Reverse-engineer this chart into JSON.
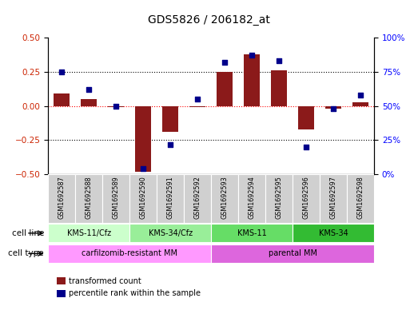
{
  "title": "GDS5826 / 206182_at",
  "samples": [
    "GSM1692587",
    "GSM1692588",
    "GSM1692589",
    "GSM1692590",
    "GSM1692591",
    "GSM1692592",
    "GSM1692593",
    "GSM1692594",
    "GSM1692595",
    "GSM1692596",
    "GSM1692597",
    "GSM1692598"
  ],
  "transformed_count": [
    0.09,
    0.05,
    -0.01,
    -0.48,
    -0.19,
    -0.01,
    0.25,
    0.38,
    0.26,
    -0.17,
    -0.02,
    0.03
  ],
  "percentile_rank": [
    75,
    62,
    50,
    4,
    22,
    55,
    82,
    87,
    83,
    20,
    48,
    58
  ],
  "bar_color": "#8B1A1A",
  "dot_color": "#00008B",
  "ylim_left": [
    -0.5,
    0.5
  ],
  "ylim_right": [
    0,
    100
  ],
  "yticks_left": [
    -0.5,
    -0.25,
    0,
    0.25,
    0.5
  ],
  "yticks_right": [
    0,
    25,
    50,
    75,
    100
  ],
  "ytick_labels_right": [
    "0%",
    "25%",
    "50%",
    "75%",
    "100%"
  ],
  "cell_line_groups": [
    {
      "label": "KMS-11/Cfz",
      "start": 0,
      "end": 3,
      "color": "#ccffcc"
    },
    {
      "label": "KMS-34/Cfz",
      "start": 3,
      "end": 6,
      "color": "#99ee99"
    },
    {
      "label": "KMS-11",
      "start": 6,
      "end": 9,
      "color": "#66dd66"
    },
    {
      "label": "KMS-34",
      "start": 9,
      "end": 12,
      "color": "#33bb33"
    }
  ],
  "cell_type_groups": [
    {
      "label": "carfilzomib-resistant MM",
      "start": 0,
      "end": 6,
      "color": "#ff99ff"
    },
    {
      "label": "parental MM",
      "start": 6,
      "end": 12,
      "color": "#dd66dd"
    }
  ],
  "cell_line_row_label": "cell line",
  "cell_type_row_label": "cell type",
  "legend_items": [
    {
      "color": "#8B1A1A",
      "label": "transformed count"
    },
    {
      "color": "#00008B",
      "label": "percentile rank within the sample"
    }
  ],
  "background_color": "#ffffff"
}
